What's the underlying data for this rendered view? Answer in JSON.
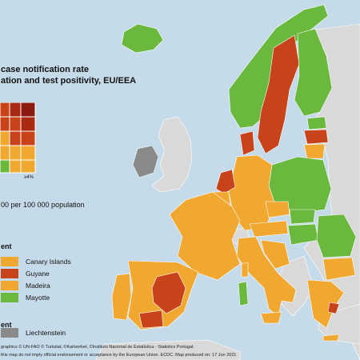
{
  "title_line1": "case notification rate",
  "title_line2": "ation and test positivity, EU/EEA",
  "matrix_axis_label": "≥4%",
  "threshold_text": "00 per 100 000 population",
  "section_outermost": "ent",
  "section_other": "ent",
  "outermost_regions": [
    {
      "label": "Canary Islands",
      "color": "#f0a830"
    },
    {
      "label": "Guyane",
      "color": "#c8421a"
    },
    {
      "label": "Madeira",
      "color": "#f0a830"
    },
    {
      "label": "Mayotte",
      "color": "#6ab83e"
    }
  ],
  "other_regions": [
    {
      "label": "Liechtenstein",
      "color": "#8a8a8a"
    }
  ],
  "footer_line1": "graphics © UN-FAO © Turkstat, ©Kartverket, ©Instituto Nacional de Estatística - Statistics Portugal.",
  "footer_line2": "this map do not imply official endorsement or acceptance by the European Union. ECDC. Map produced on: 17 Jun 2021",
  "colors": {
    "sea": "#c6dbe9",
    "non_eu": "#d9d9d9",
    "green": "#6ab83e",
    "orange": "#f0a830",
    "red": "#c8421a",
    "darkred": "#8b1a10",
    "grey": "#8a8a8a"
  }
}
